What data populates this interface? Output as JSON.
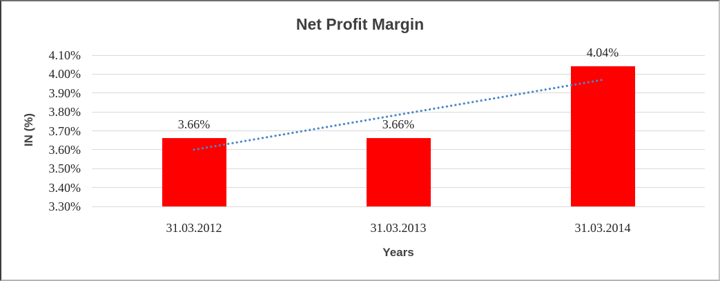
{
  "chart_data": {
    "type": "bar",
    "title": "Net Profit Margin",
    "xlabel": "Years",
    "ylabel": "IN (%)",
    "categories": [
      "31.03.2012",
      "31.03.2013",
      "31.03.2014"
    ],
    "values": [
      3.66,
      3.66,
      4.04
    ],
    "data_labels": [
      "3.66%",
      "3.66%",
      "4.04%"
    ],
    "ylim": [
      3.3,
      4.1
    ],
    "yticks": [
      {
        "value": 4.1,
        "label": "4.10%"
      },
      {
        "value": 4.0,
        "label": "4.00%"
      },
      {
        "value": 3.9,
        "label": "3.90%"
      },
      {
        "value": 3.8,
        "label": "3.80%"
      },
      {
        "value": 3.7,
        "label": "3.70%"
      },
      {
        "value": 3.6,
        "label": "3.60%"
      },
      {
        "value": 3.5,
        "label": "3.50%"
      },
      {
        "value": 3.4,
        "label": "3.40%"
      },
      {
        "value": 3.3,
        "label": "3.30%"
      }
    ],
    "grid": true,
    "legend": false,
    "bar_color": "#ff0000",
    "gridline_color": "#d9d9d9",
    "trendline": {
      "type": "linear",
      "style": "dotted",
      "color": "#4a86c8",
      "start_value": 3.6,
      "end_value": 3.97
    }
  }
}
